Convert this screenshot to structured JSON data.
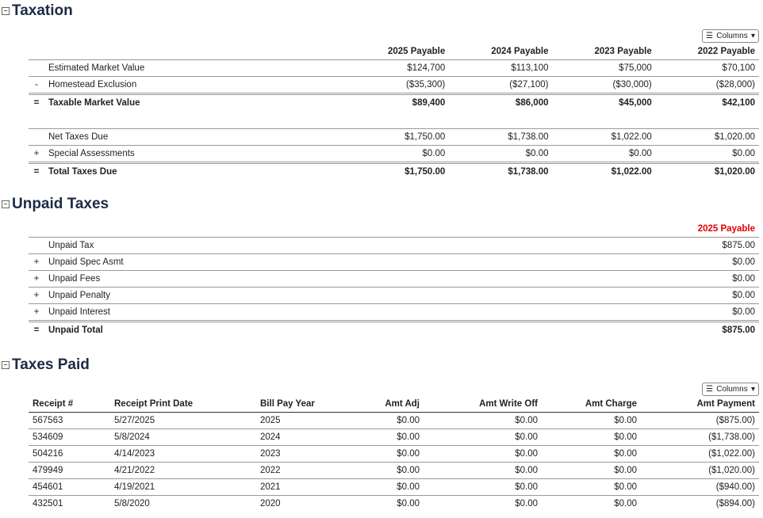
{
  "taxation": {
    "title": "Taxation",
    "columns_label": "Columns",
    "headers": [
      "2025 Payable",
      "2024 Payable",
      "2023 Payable",
      "2022 Payable"
    ],
    "rows": [
      {
        "op": "",
        "label": "Estimated Market Value",
        "values": [
          "$124,700",
          "$113,100",
          "$75,000",
          "$70,100"
        ]
      },
      {
        "op": "-",
        "label": "Homestead Exclusion",
        "values": [
          "($35,300)",
          "($27,100)",
          "($30,000)",
          "($28,000)"
        ]
      },
      {
        "op": "=",
        "label": "Taxable Market Value",
        "values": [
          "$89,400",
          "$86,000",
          "$45,000",
          "$42,100"
        ]
      },
      {
        "op": "",
        "label": "Net Taxes Due",
        "values": [
          "$1,750.00",
          "$1,738.00",
          "$1,022.00",
          "$1,020.00"
        ]
      },
      {
        "op": "+",
        "label": "Special Assessments",
        "values": [
          "$0.00",
          "$0.00",
          "$0.00",
          "$0.00"
        ]
      },
      {
        "op": "=",
        "label": "Total Taxes Due",
        "values": [
          "$1,750.00",
          "$1,738.00",
          "$1,022.00",
          "$1,020.00"
        ]
      }
    ]
  },
  "unpaid": {
    "title": "Unpaid Taxes",
    "header": "2025 Payable",
    "header_color": "#e00000",
    "rows": [
      {
        "op": "",
        "label": "Unpaid Tax",
        "value": "$875.00"
      },
      {
        "op": "+",
        "label": "Unpaid Spec Asmt",
        "value": "$0.00"
      },
      {
        "op": "+",
        "label": "Unpaid Fees",
        "value": "$0.00"
      },
      {
        "op": "+",
        "label": "Unpaid Penalty",
        "value": "$0.00"
      },
      {
        "op": "+",
        "label": "Unpaid Interest",
        "value": "$0.00"
      },
      {
        "op": "=",
        "label": "Unpaid Total",
        "value": "$875.00"
      }
    ]
  },
  "paid": {
    "title": "Taxes Paid",
    "columns_label": "Columns",
    "headers": [
      "Receipt #",
      "Receipt Print Date",
      "Bill Pay Year",
      "Amt Adj",
      "Amt Write Off",
      "Amt Charge",
      "Amt Payment"
    ],
    "rows": [
      [
        "567563",
        "5/27/2025",
        "2025",
        "$0.00",
        "$0.00",
        "$0.00",
        "($875.00)"
      ],
      [
        "534609",
        "5/8/2024",
        "2024",
        "$0.00",
        "$0.00",
        "$0.00",
        "($1,738.00)"
      ],
      [
        "504216",
        "4/14/2023",
        "2023",
        "$0.00",
        "$0.00",
        "$0.00",
        "($1,022.00)"
      ],
      [
        "479949",
        "4/21/2022",
        "2022",
        "$0.00",
        "$0.00",
        "$0.00",
        "($1,020.00)"
      ],
      [
        "454601",
        "4/19/2021",
        "2021",
        "$0.00",
        "$0.00",
        "$0.00",
        "($940.00)"
      ],
      [
        "432501",
        "5/8/2020",
        "2020",
        "$0.00",
        "$0.00",
        "$0.00",
        "($894.00)"
      ]
    ]
  }
}
